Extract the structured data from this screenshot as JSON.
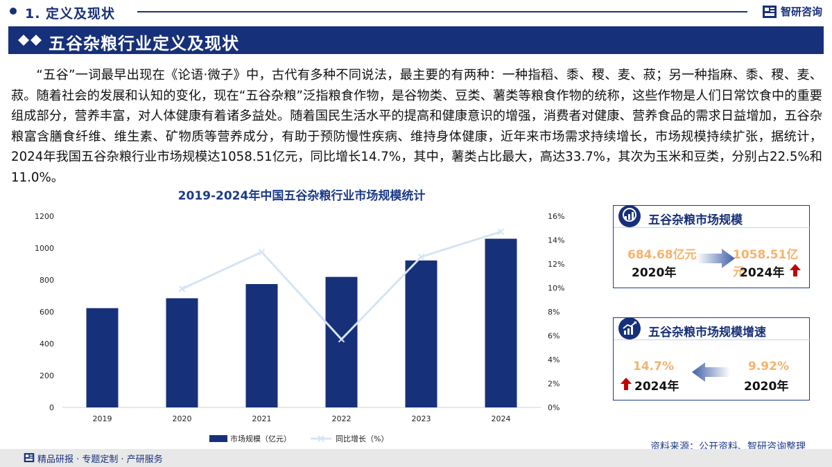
{
  "header": {
    "section_title": "1. 定义及现状",
    "brand": "智研咨询"
  },
  "banner": {
    "title": "五谷杂粮行业定义及现状"
  },
  "paragraph": "“五谷”一词最早出现在《论语·微子》中，古代有多种不同说法，最主要的有两种：一种指稻、黍、稷、麦、菽；另一种指麻、黍、稷、麦、菽。随着社会的发展和认知的变化，现在“五谷杂粮”泛指粮食作物，是谷物类、豆类、薯类等粮食作物的统称，这些作物是人们日常饮食中的重要组成部分，营养丰富，对人体健康有着诸多益处。随着国民生活水平的提高和健康意识的增强，消费者对健康、营养食品的需求日益增加，五谷杂粮富含膳食纤维、维生素、矿物质等营养成分，有助于预防慢性疾病、维持身体健康，近年来市场需求持续增长，市场规模持续扩张，据统计，2024年我国五谷杂粮行业市场规模达1058.51亿元，同比增长14.7%，其中，薯类占比最大，高达33.7%，其次为玉米和豆类，分别占22.5%和11.0%。",
  "chart_data": {
    "type": "bar+line",
    "title": "2019-2024年中国五谷杂粮行业市场规模统计",
    "categories": [
      "2019",
      "2020",
      "2021",
      "2022",
      "2023",
      "2024"
    ],
    "series": [
      {
        "name": "市场规模（亿元）",
        "type": "bar",
        "axis": "left",
        "values": [
          623,
          685,
          774,
          819,
          922,
          1058.51
        ]
      },
      {
        "name": "同比增长（%）",
        "type": "line",
        "axis": "right",
        "values": [
          null,
          9.92,
          13.0,
          5.7,
          12.6,
          14.7
        ]
      }
    ],
    "left_axis": {
      "min": 0,
      "max": 1200,
      "ticks": [
        "0",
        "200",
        "400",
        "600",
        "800",
        "1000",
        "1200"
      ]
    },
    "right_axis": {
      "min": 0,
      "max": 16,
      "ticks": [
        "0%",
        "2%",
        "4%",
        "6%",
        "8%",
        "10%",
        "12%",
        "14%",
        "16%"
      ]
    },
    "colors": {
      "bar": "#17307a",
      "line": "#d5e4f5"
    },
    "legend": {
      "bar_label": "市场规模（亿元）",
      "line_label": "同比增长（%）",
      "position": "bottom"
    }
  },
  "cards": {
    "scale": {
      "title": "五谷杂粮市场规模",
      "from_value": "684.68亿元",
      "from_year": "2020年",
      "to_value": "1058.51亿元",
      "to_year": "2024年"
    },
    "growth": {
      "title": "五谷杂粮市场规模增速",
      "left_value": "14.7%",
      "left_year": "2024年",
      "right_value": "9.92%",
      "right_year": "2020年"
    }
  },
  "footer": {
    "source": "资料来源：公开资料、智研咨询整理",
    "tagline": "精品研报 · 专题定制 · 产研服务"
  },
  "colors": {
    "brand_navy": "#17307a",
    "accent_orange": "#f6b26b",
    "arrow_red": "#c00000"
  }
}
